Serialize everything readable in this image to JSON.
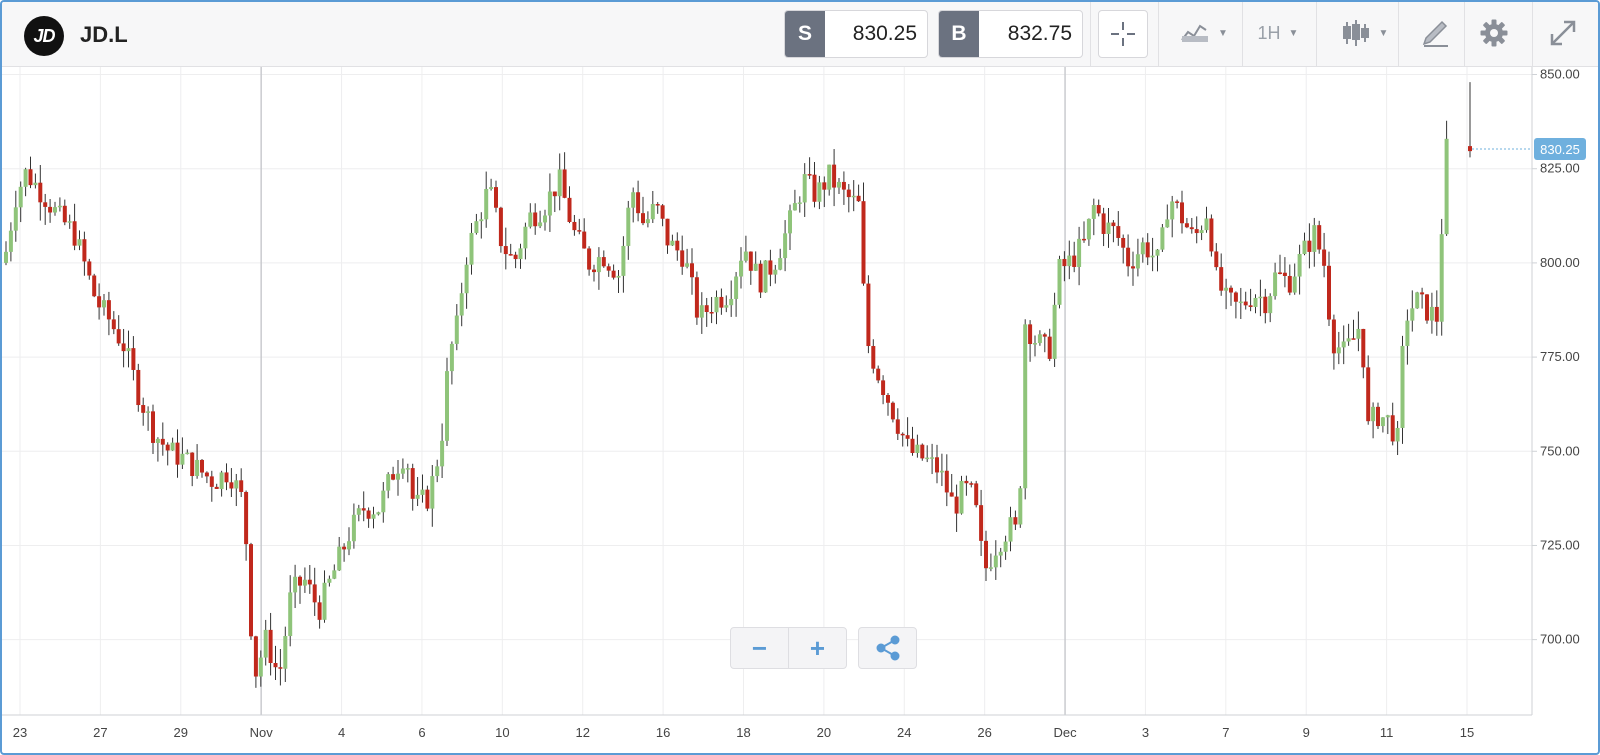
{
  "header": {
    "logo_text": "JD",
    "symbol": "JD.L",
    "sell_label": "S",
    "sell_price": "830.25",
    "buy_label": "B",
    "buy_price": "832.75",
    "interval": "1H"
  },
  "toolbar_icons": [
    "crosshair-icon",
    "compare-icon",
    "candlestick-icon",
    "draw-icon",
    "gear-icon",
    "fullscreen-icon"
  ],
  "controls": {
    "zoom_out": "−",
    "zoom_in": "+",
    "share_icon": "share-icon"
  },
  "colors": {
    "up": "#8fc47a",
    "down": "#c0281c",
    "price_badge": "#6fb0de",
    "accent": "#5b9bd5"
  },
  "chart_data": {
    "type": "candlestick",
    "ylim": [
      680,
      852
    ],
    "y_ticks": [
      "850.00",
      "825.00",
      "800.00",
      "775.00",
      "750.00",
      "725.00",
      "700.00"
    ],
    "y_tick_values": [
      850,
      825,
      800,
      775,
      750,
      725,
      700
    ],
    "x_ticks": [
      "23",
      "27",
      "29",
      "Nov",
      "4",
      "6",
      "10",
      "12",
      "16",
      "18",
      "20",
      "24",
      "26",
      "Dec",
      "3",
      "7",
      "9",
      "11",
      "15"
    ],
    "current_price": "830.25",
    "current_value": 830.25,
    "grid": true,
    "path_points": [
      [
        0,
        800
      ],
      [
        12,
        818
      ],
      [
        22,
        824
      ],
      [
        40,
        818
      ],
      [
        55,
        812
      ],
      [
        70,
        808
      ],
      [
        80,
        800
      ],
      [
        92,
        790
      ],
      [
        105,
        785
      ],
      [
        120,
        778
      ],
      [
        135,
        765
      ],
      [
        150,
        755
      ],
      [
        165,
        750
      ],
      [
        180,
        748
      ],
      [
        195,
        745
      ],
      [
        210,
        742
      ],
      [
        225,
        745
      ],
      [
        240,
        736
      ],
      [
        250,
        690
      ],
      [
        262,
        700
      ],
      [
        275,
        690
      ],
      [
        287,
        712
      ],
      [
        300,
        716
      ],
      [
        315,
        708
      ],
      [
        330,
        718
      ],
      [
        345,
        728
      ],
      [
        360,
        735
      ],
      [
        375,
        735
      ],
      [
        390,
        745
      ],
      [
        402,
        750
      ],
      [
        410,
        735
      ],
      [
        425,
        738
      ],
      [
        437,
        752
      ],
      [
        445,
        775
      ],
      [
        455,
        785
      ],
      [
        460,
        800
      ],
      [
        472,
        810
      ],
      [
        485,
        820
      ],
      [
        498,
        805
      ],
      [
        510,
        800
      ],
      [
        525,
        812
      ],
      [
        540,
        815
      ],
      [
        555,
        822
      ],
      [
        570,
        808
      ],
      [
        585,
        800
      ],
      [
        600,
        802
      ],
      [
        615,
        797
      ],
      [
        628,
        820
      ],
      [
        640,
        810
      ],
      [
        652,
        815
      ],
      [
        665,
        805
      ],
      [
        680,
        802
      ],
      [
        695,
        785
      ],
      [
        710,
        790
      ],
      [
        725,
        792
      ],
      [
        740,
        805
      ],
      [
        755,
        795
      ],
      [
        770,
        800
      ],
      [
        785,
        810
      ],
      [
        800,
        822
      ],
      [
        812,
        818
      ],
      [
        825,
        823
      ],
      [
        840,
        818
      ],
      [
        855,
        815
      ],
      [
        862,
        780
      ],
      [
        875,
        770
      ],
      [
        890,
        760
      ],
      [
        905,
        750
      ],
      [
        920,
        748
      ],
      [
        935,
        745
      ],
      [
        950,
        735
      ],
      [
        960,
        740
      ],
      [
        970,
        738
      ],
      [
        980,
        718
      ],
      [
        992,
        725
      ],
      [
        1005,
        730
      ],
      [
        1015,
        728
      ],
      [
        1020,
        785
      ],
      [
        1030,
        780
      ],
      [
        1045,
        776
      ],
      [
        1055,
        798
      ],
      [
        1065,
        800
      ],
      [
        1080,
        805
      ],
      [
        1090,
        815
      ],
      [
        1100,
        810
      ],
      [
        1112,
        808
      ],
      [
        1125,
        800
      ],
      [
        1140,
        805
      ],
      [
        1155,
        800
      ],
      [
        1165,
        818
      ],
      [
        1178,
        812
      ],
      [
        1190,
        806
      ],
      [
        1205,
        815
      ],
      [
        1210,
        797
      ],
      [
        1222,
        790
      ],
      [
        1235,
        788
      ],
      [
        1250,
        792
      ],
      [
        1262,
        790
      ],
      [
        1272,
        797
      ],
      [
        1285,
        795
      ],
      [
        1298,
        802
      ],
      [
        1310,
        808
      ],
      [
        1320,
        800
      ],
      [
        1328,
        780
      ],
      [
        1340,
        776
      ],
      [
        1350,
        780
      ],
      [
        1358,
        785
      ],
      [
        1362,
        755
      ],
      [
        1372,
        760
      ],
      [
        1385,
        758
      ],
      [
        1395,
        752
      ],
      [
        1400,
        785
      ],
      [
        1412,
        790
      ],
      [
        1425,
        787
      ],
      [
        1435,
        785
      ],
      [
        1440,
        830
      ],
      [
        1446,
        830
      ]
    ]
  }
}
